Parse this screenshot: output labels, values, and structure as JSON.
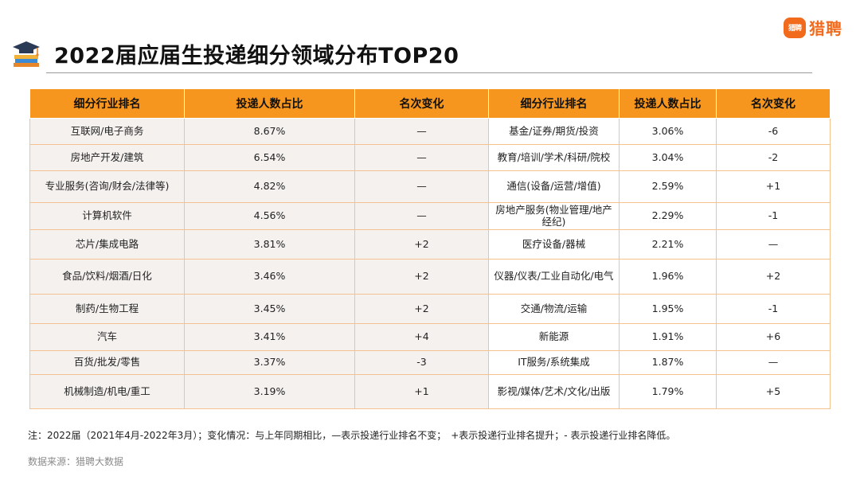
{
  "brand": {
    "mark": "猎聘",
    "name": "猎聘",
    "color": "#f26a1b"
  },
  "title": "2022届应届生投递细分领域分布TOP20",
  "table": {
    "headers": [
      "细分行业排名",
      "投递人数占比",
      "名次变化",
      "细分行业排名",
      "投递人数占比",
      "名次变化"
    ],
    "rows": [
      {
        "left": {
          "industry": "互联网/电子商务",
          "share": "8.67%",
          "change": "—",
          "dir": "same"
        },
        "right": {
          "industry": "基金/证券/期货/投资",
          "share": "3.06%",
          "change": "-6",
          "dir": "down"
        }
      },
      {
        "left": {
          "industry": "房地产开发/建筑",
          "share": "6.54%",
          "change": "—",
          "dir": "same"
        },
        "right": {
          "industry": "教育/培训/学术/科研/院校",
          "share": "3.04%",
          "change": "-2",
          "dir": "down"
        }
      },
      {
        "left": {
          "industry": "专业服务(咨询/财会/法律等)",
          "share": "4.82%",
          "change": "—",
          "dir": "same"
        },
        "right": {
          "industry": "通信(设备/运营/增值)",
          "share": "2.59%",
          "change": "+1",
          "dir": "up"
        }
      },
      {
        "left": {
          "industry": "计算机软件",
          "share": "4.56%",
          "change": "—",
          "dir": "same"
        },
        "right": {
          "industry": "房地产服务(物业管理/地产经纪)",
          "share": "2.29%",
          "change": "-1",
          "dir": "down"
        }
      },
      {
        "left": {
          "industry": "芯片/集成电路",
          "share": "3.81%",
          "change": "+2",
          "dir": "up"
        },
        "right": {
          "industry": "医疗设备/器械",
          "share": "2.21%",
          "change": "—",
          "dir": "same"
        }
      },
      {
        "left": {
          "industry": "食品/饮料/烟酒/日化",
          "share": "3.46%",
          "change": "+2",
          "dir": "up"
        },
        "right": {
          "industry": "仪器/仪表/工业自动化/电气",
          "share": "1.96%",
          "change": "+2",
          "dir": "up"
        }
      },
      {
        "left": {
          "industry": "制药/生物工程",
          "share": "3.45%",
          "change": "+2",
          "dir": "up"
        },
        "right": {
          "industry": "交通/物流/运输",
          "share": "1.95%",
          "change": "-1",
          "dir": "down"
        }
      },
      {
        "left": {
          "industry": "汽车",
          "share": "3.41%",
          "change": "+4",
          "dir": "up"
        },
        "right": {
          "industry": "新能源",
          "share": "1.91%",
          "change": "+6",
          "dir": "up"
        }
      },
      {
        "left": {
          "industry": "百货/批发/零售",
          "share": "3.37%",
          "change": "-3",
          "dir": "down"
        },
        "right": {
          "industry": "IT服务/系统集成",
          "share": "1.87%",
          "change": "—",
          "dir": "same"
        }
      },
      {
        "left": {
          "industry": "机械制造/机电/重工",
          "share": "3.19%",
          "change": "+1",
          "dir": "up"
        },
        "right": {
          "industry": "影视/媒体/艺术/文化/出版",
          "share": "1.79%",
          "change": "+5",
          "dir": "up"
        }
      }
    ]
  },
  "note": "注：2022届（2021年4月-2022年3月）；变化情况：与上年同期相比，—表示投递行业排名不变；　+表示投递行业排名提升；- 表示投递行业排名降低。",
  "source": "数据来源：猎聘大数据",
  "colors": {
    "header": "#f6961e",
    "up": "#f07d14",
    "down": "#4a74c9",
    "border": "#f4c18f",
    "shade": "#f4f1ef"
  },
  "icons": {
    "title": "graduation-cap-books-icon",
    "brand": "liepin-logo-icon"
  }
}
